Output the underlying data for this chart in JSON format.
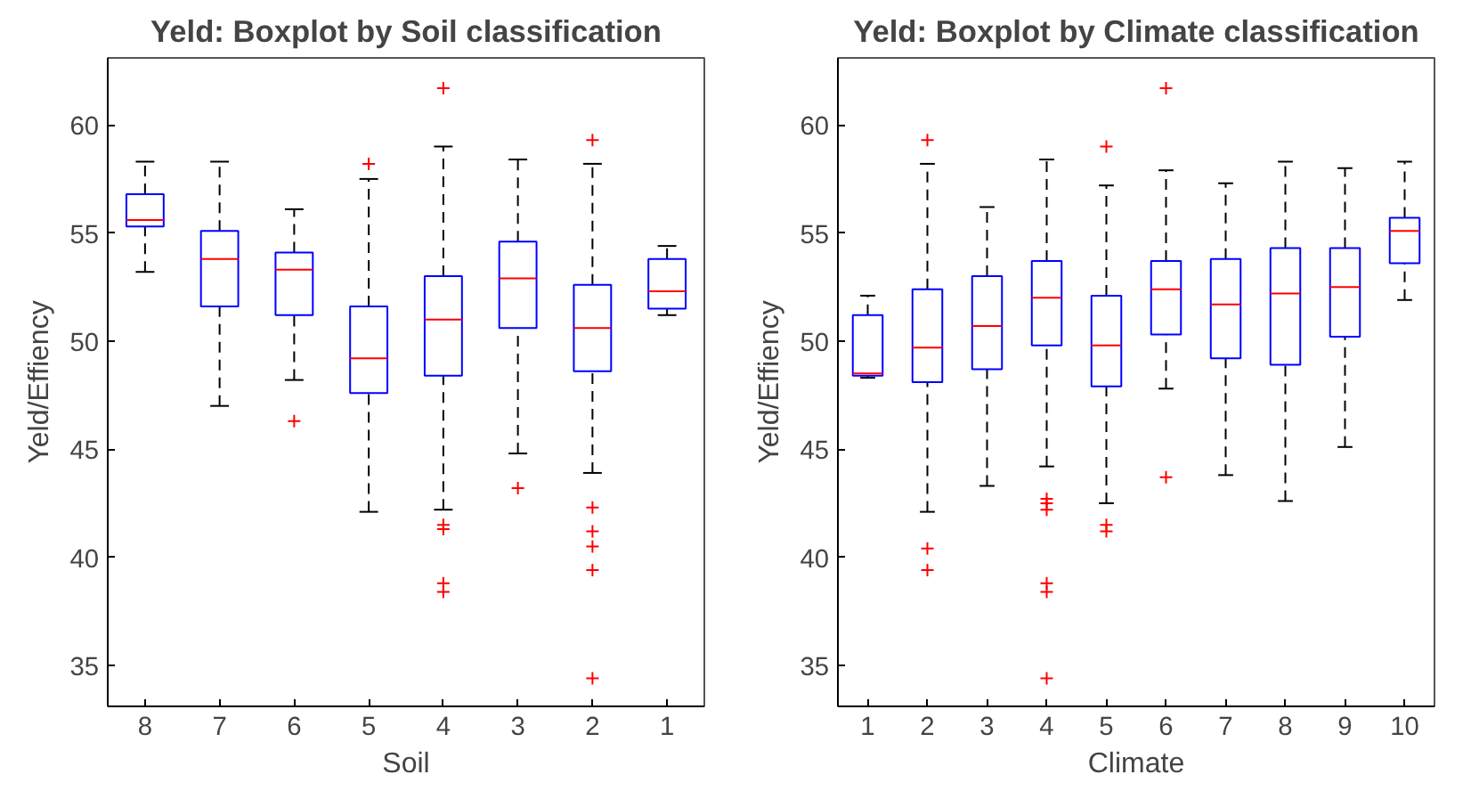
{
  "chart_data": [
    {
      "type": "box",
      "title": "Yeld: Boxplot by Soil classification",
      "xlabel": "Soil",
      "ylabel": "Yeld/Effiency",
      "categories": [
        "8",
        "7",
        "6",
        "5",
        "4",
        "3",
        "2",
        "1"
      ],
      "ylim": [
        33.1,
        63.1
      ],
      "yticks": [
        35,
        40,
        45,
        50,
        55,
        60
      ],
      "grid": false,
      "color": "#0000ff",
      "marker": "cross",
      "boxes": [
        {
          "low": 53.2,
          "q1": 55.3,
          "median": 55.6,
          "q3": 56.8,
          "high": 58.3
        },
        {
          "low": 47.0,
          "q1": 51.6,
          "median": 53.8,
          "q3": 55.1,
          "high": 58.3
        },
        {
          "low": 48.2,
          "q1": 51.2,
          "median": 53.3,
          "q3": 54.1,
          "high": 56.1,
          "outliers": [
            46.3
          ]
        },
        {
          "low": 42.1,
          "q1": 47.6,
          "median": 49.2,
          "q3": 51.6,
          "high": 57.5,
          "outliers": [
            58.2
          ]
        },
        {
          "low": 42.2,
          "q1": 48.4,
          "median": 51.0,
          "q3": 53.0,
          "high": 59.0,
          "outliers": [
            61.7,
            41.5,
            41.3,
            38.8,
            38.4
          ]
        },
        {
          "low": 44.8,
          "q1": 50.6,
          "median": 52.9,
          "q3": 54.6,
          "high": 58.4,
          "outliers": [
            43.2
          ]
        },
        {
          "low": 43.9,
          "q1": 48.6,
          "median": 50.6,
          "q3": 52.6,
          "high": 58.2,
          "outliers": [
            59.3,
            42.3,
            41.2,
            40.5,
            39.4,
            34.4
          ]
        },
        {
          "low": 51.2,
          "q1": 51.5,
          "median": 52.3,
          "q3": 53.8,
          "high": 54.4
        }
      ]
    },
    {
      "type": "box",
      "title": "Yeld: Boxplot by Climate classification",
      "xlabel": "Climate",
      "ylabel": "Yeld/Effiency",
      "categories": [
        "1",
        "2",
        "3",
        "4",
        "5",
        "6",
        "7",
        "8",
        "9",
        "10"
      ],
      "ylim": [
        33.1,
        63.1
      ],
      "yticks": [
        35,
        40,
        45,
        50,
        55,
        60
      ],
      "grid": false,
      "color": "#0000ff",
      "marker": "cross",
      "boxes": [
        {
          "low": 48.3,
          "q1": 48.4,
          "median": 48.5,
          "q3": 51.2,
          "high": 52.1
        },
        {
          "low": 42.1,
          "q1": 48.1,
          "median": 49.7,
          "q3": 52.4,
          "high": 58.2,
          "outliers": [
            59.3,
            40.4,
            39.4
          ]
        },
        {
          "low": 43.3,
          "q1": 48.7,
          "median": 50.7,
          "q3": 53.0,
          "high": 56.2
        },
        {
          "low": 44.2,
          "q1": 49.8,
          "median": 52.0,
          "q3": 53.7,
          "high": 58.4,
          "outliers": [
            42.7,
            42.5,
            42.2,
            38.8,
            38.4,
            34.4
          ]
        },
        {
          "low": 42.5,
          "q1": 47.9,
          "median": 49.8,
          "q3": 52.1,
          "high": 57.2,
          "outliers": [
            59.0,
            41.5,
            41.2
          ]
        },
        {
          "low": 47.8,
          "q1": 50.3,
          "median": 52.4,
          "q3": 53.7,
          "high": 57.9,
          "outliers": [
            61.7,
            43.7
          ]
        },
        {
          "low": 43.8,
          "q1": 49.2,
          "median": 51.7,
          "q3": 53.8,
          "high": 57.3
        },
        {
          "low": 42.6,
          "q1": 48.9,
          "median": 52.2,
          "q3": 54.3,
          "high": 58.3
        },
        {
          "low": 45.1,
          "q1": 50.2,
          "median": 52.5,
          "q3": 54.3,
          "high": 58.0
        },
        {
          "low": 51.9,
          "q1": 53.6,
          "median": 55.1,
          "q3": 55.7,
          "high": 58.3
        }
      ]
    }
  ]
}
